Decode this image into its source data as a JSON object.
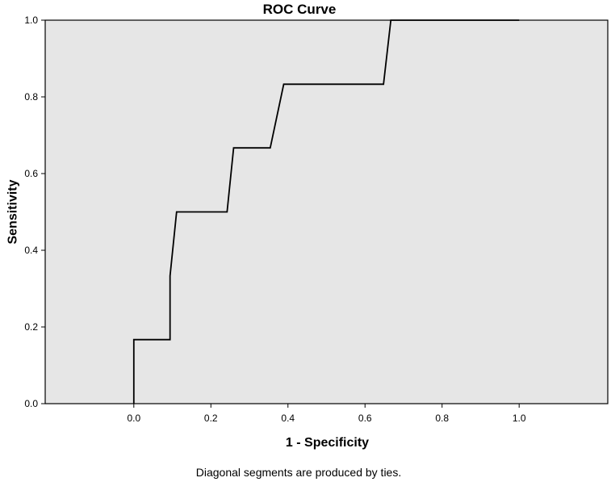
{
  "chart_data": {
    "type": "line",
    "title": "ROC Curve",
    "xlabel": "1 - Specificity",
    "ylabel": "Sensitivity",
    "footnote": "Diagonal segments are produced by ties.",
    "xlim": [
      -0.23,
      1.23
    ],
    "ylim": [
      0,
      1
    ],
    "x_ticks": [
      "0.0",
      "0.2",
      "0.4",
      "0.6",
      "0.8",
      "1.0"
    ],
    "y_ticks": [
      "0.0",
      "0.2",
      "0.4",
      "0.6",
      "0.8",
      "1.0"
    ],
    "grid": false,
    "legend": "none",
    "series": [
      {
        "points": [
          [
            0.0,
            0.0
          ],
          [
            0.0,
            0.167
          ],
          [
            0.094,
            0.167
          ],
          [
            0.094,
            0.333
          ],
          [
            0.111,
            0.5
          ],
          [
            0.242,
            0.5
          ],
          [
            0.259,
            0.667
          ],
          [
            0.354,
            0.667
          ],
          [
            0.389,
            0.833
          ],
          [
            0.648,
            0.833
          ],
          [
            0.667,
            1.0
          ],
          [
            1.0,
            1.0
          ]
        ],
        "color": "#000000"
      }
    ],
    "plot_background": "#e6e6e6",
    "axis_color": "#000000"
  }
}
